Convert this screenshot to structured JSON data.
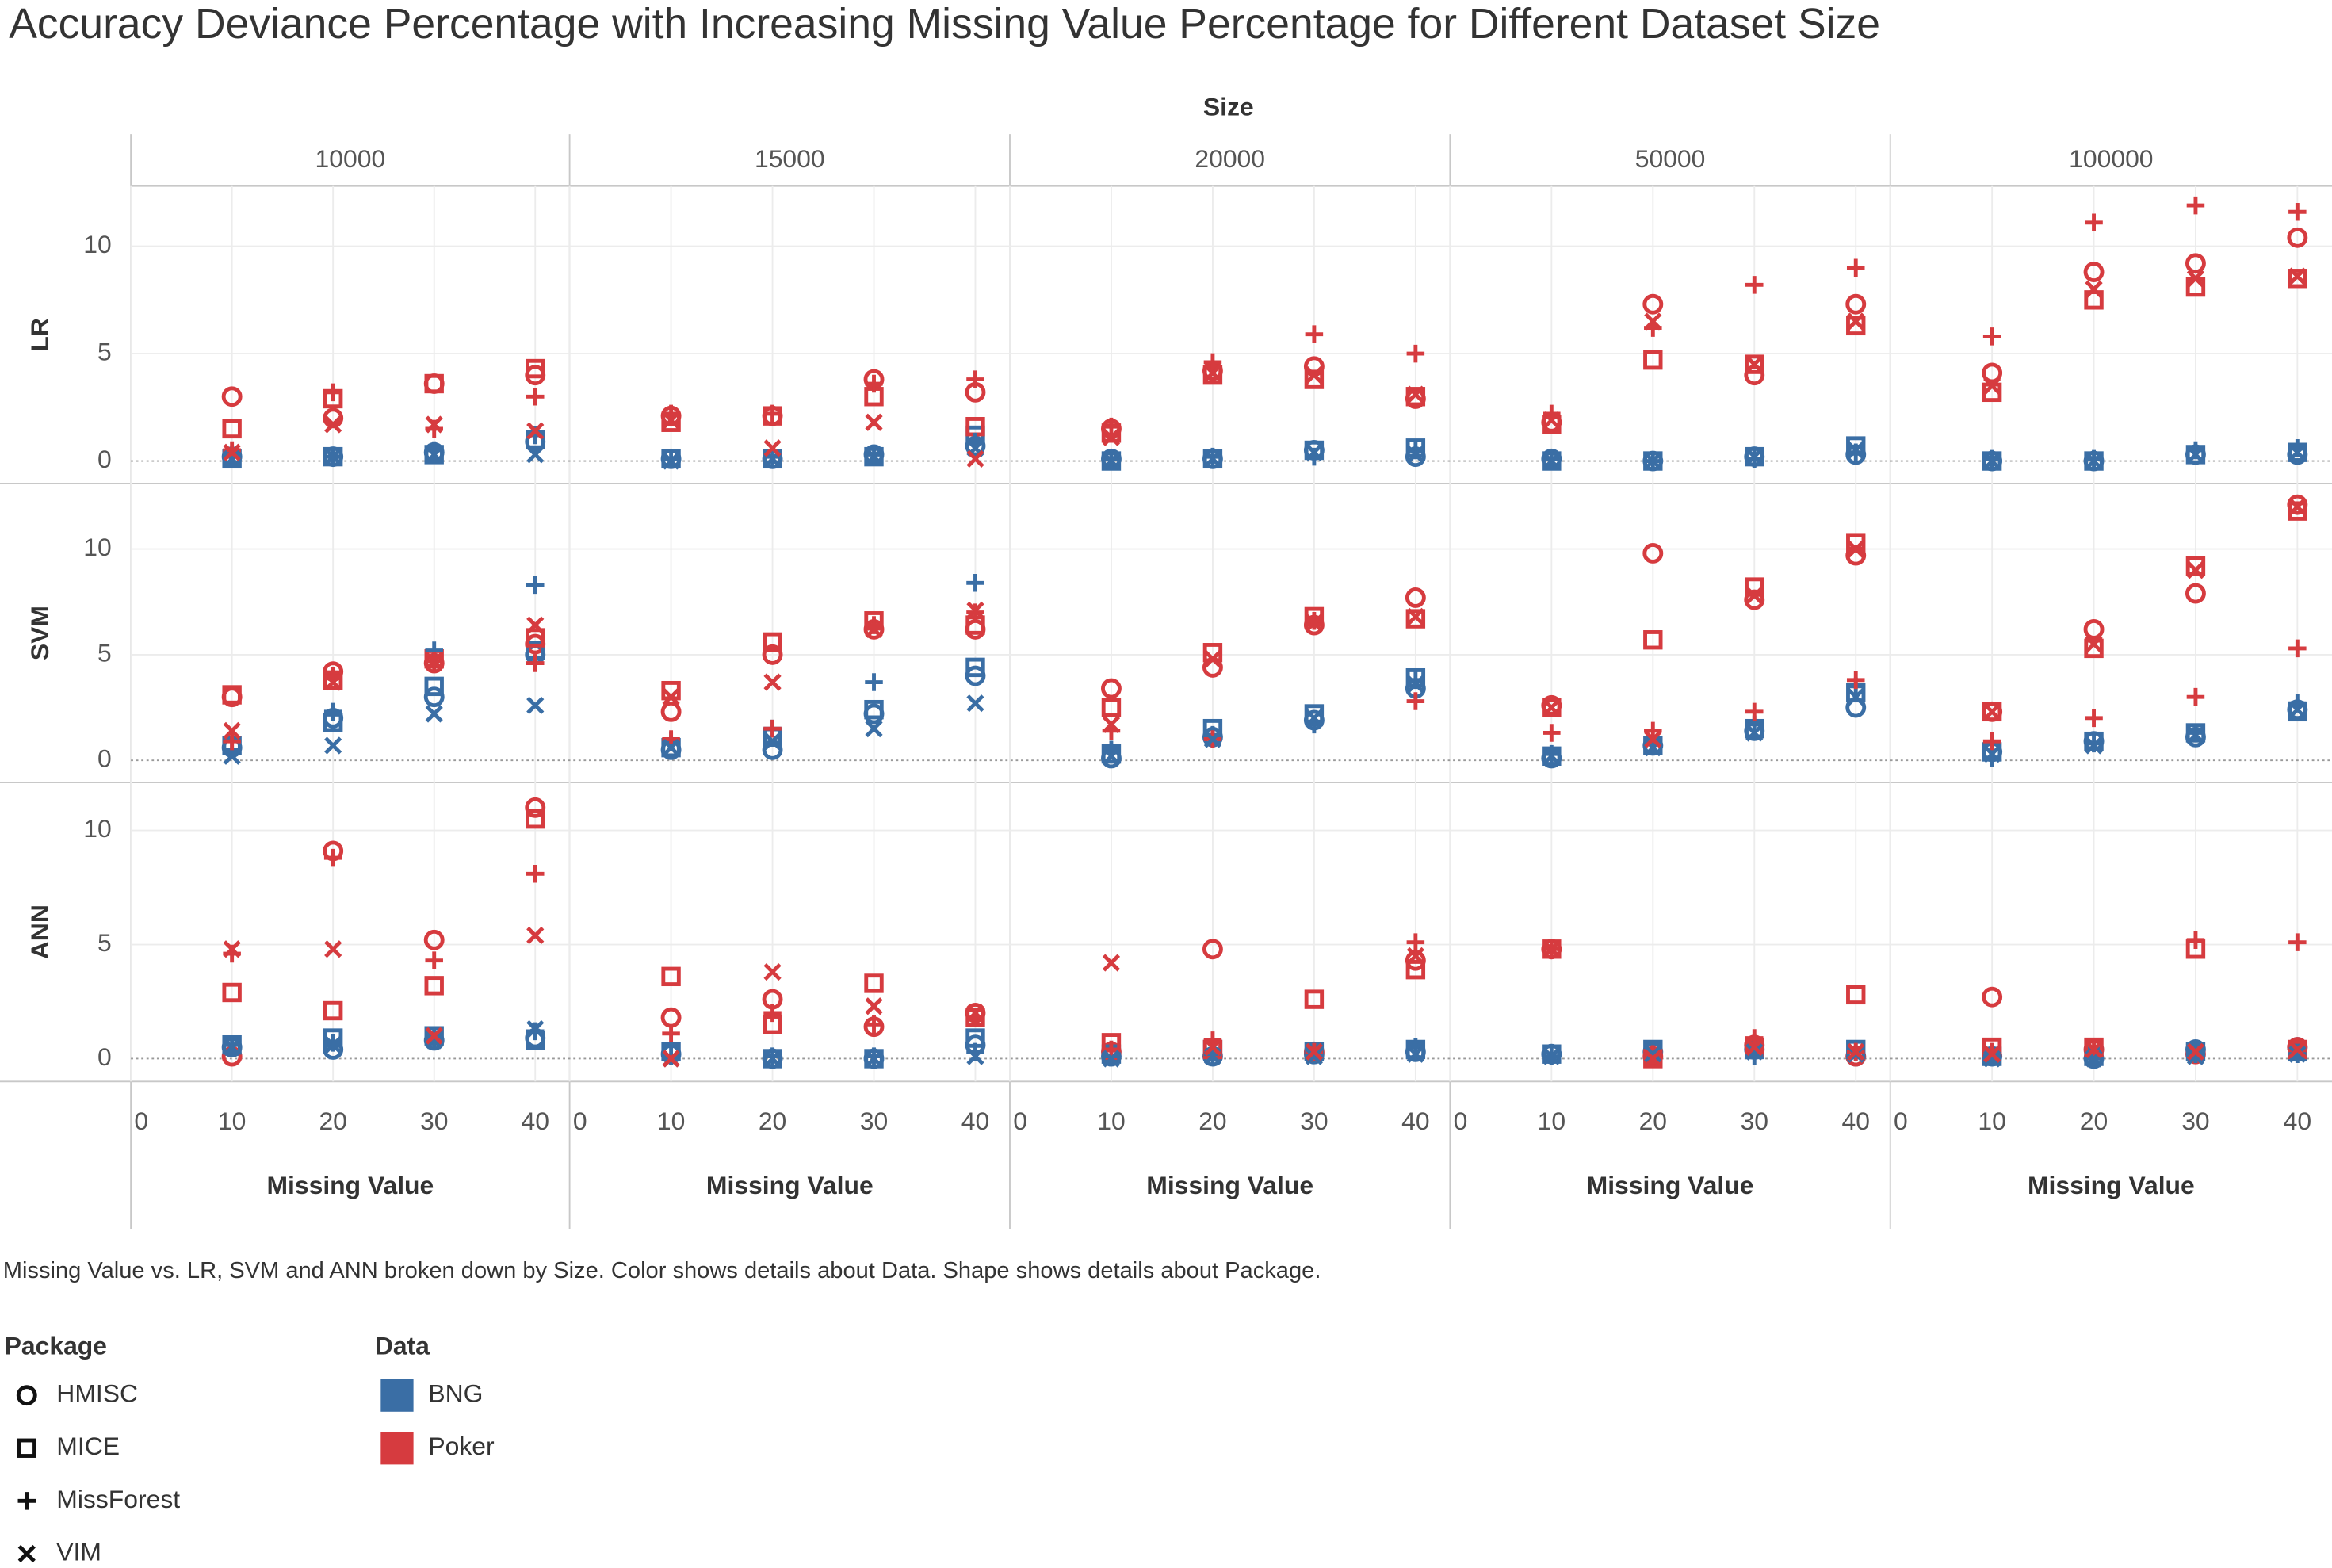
{
  "chart_data": {
    "type": "scatter",
    "title": "Accuracy Deviance Percentage with Increasing Missing Value Percentage for Different Dataset Size",
    "column_header": "Size",
    "columns": [
      "10000",
      "15000",
      "20000",
      "50000",
      "100000"
    ],
    "rows": [
      {
        "name": "LR",
        "ylim": [
          -1.05,
          12.8
        ],
        "yticks": [
          0,
          5,
          10
        ]
      },
      {
        "name": "SVM",
        "ylim": [
          -1.05,
          13.1
        ],
        "yticks": [
          0,
          5,
          10
        ]
      },
      {
        "name": "ANN",
        "ylim": [
          -1,
          12.1
        ],
        "yticks": [
          0,
          5,
          10
        ]
      }
    ],
    "x_label": "Missing Value",
    "x": [
      10,
      20,
      30,
      40
    ],
    "xlim": [
      0,
      43.4
    ],
    "xticks": [
      0,
      10,
      20,
      30,
      40
    ],
    "grid": true,
    "caption": "Missing Value vs. LR, SVM and ANN broken down by Size.  Color shows details about Data.  Shape shows details about Package.",
    "package_title": "Package",
    "packages": [
      {
        "name": "HMISC",
        "shape": "circle"
      },
      {
        "name": "MICE",
        "shape": "square"
      },
      {
        "name": "MissForest",
        "shape": "plus"
      },
      {
        "name": "VIM",
        "shape": "cross"
      }
    ],
    "data_title": "Data",
    "data": [
      {
        "name": "BNG",
        "color": "#3a6ea5"
      },
      {
        "name": "Poker",
        "color": "#d63b3f"
      }
    ],
    "values": [
      [
        [
          [
            [
              0.2,
              0.2,
              0.4,
              0.9
            ],
            [
              3.0,
              2.0,
              3.6,
              4.0
            ]
          ],
          [
            [
              0.1,
              0.2,
              0.3,
              1.0
            ],
            [
              1.5,
              2.9,
              3.6,
              4.3
            ]
          ],
          [
            [
              0.2,
              0.2,
              0.5,
              1.2
            ],
            [
              0.5,
              3.2,
              1.5,
              3.0
            ]
          ],
          [
            [
              0.1,
              0.2,
              0.3,
              0.3
            ],
            [
              0.4,
              1.7,
              1.7,
              1.4
            ]
          ]
        ],
        [
          [
            [
              0.1,
              0.1,
              0.3,
              0.7
            ],
            [
              2.1,
              2.1,
              3.8,
              3.2
            ]
          ],
          [
            [
              0.1,
              0.1,
              0.2,
              1.2
            ],
            [
              1.8,
              2.1,
              3.0,
              1.6
            ]
          ],
          [
            [
              0.1,
              0.2,
              0.3,
              0.9
            ],
            [
              2.2,
              2.2,
              3.6,
              3.8
            ]
          ],
          [
            [
              0,
              0.1,
              0.2,
              0.6
            ],
            [
              1.9,
              0.6,
              1.8,
              0.1
            ]
          ]
        ],
        [
          [
            [
              0.1,
              0.1,
              0.5,
              0.2
            ],
            [
              1.5,
              4.2,
              4.4,
              2.9
            ]
          ],
          [
            [
              0,
              0.1,
              0.5,
              0.6
            ],
            [
              1.3,
              4.0,
              3.8,
              3.0
            ]
          ],
          [
            [
              0.1,
              0.2,
              0.2,
              0.5
            ],
            [
              1.6,
              4.6,
              5.9,
              5.0
            ]
          ],
          [
            [
              0,
              0.1,
              0.4,
              0.3
            ],
            [
              1.1,
              4.1,
              4.0,
              3.1
            ]
          ]
        ],
        [
          [
            [
              0.1,
              0,
              0.2,
              0.3
            ],
            [
              1.8,
              7.3,
              4.0,
              7.3
            ]
          ],
          [
            [
              0,
              0,
              0.2,
              0.7
            ],
            [
              1.7,
              4.7,
              4.5,
              6.3
            ]
          ],
          [
            [
              0.1,
              0,
              0.1,
              0.4
            ],
            [
              2.2,
              6.2,
              8.2,
              9.0
            ]
          ],
          [
            [
              0,
              0,
              0.2,
              0.5
            ],
            [
              1.9,
              6.5,
              4.5,
              6.5
            ]
          ]
        ],
        [
          [
            [
              0,
              0,
              0.3,
              0.3
            ],
            [
              4.1,
              8.8,
              9.2,
              10.4
            ]
          ],
          [
            [
              0,
              0,
              0.3,
              0.4
            ],
            [
              3.2,
              7.5,
              8.1,
              8.5
            ]
          ],
          [
            [
              0.1,
              0.1,
              0.5,
              0.6
            ],
            [
              5.8,
              11.1,
              11.9,
              11.6
            ]
          ],
          [
            [
              0,
              0,
              0.3,
              0.4
            ],
            [
              3.5,
              8.0,
              8.5,
              8.6
            ]
          ]
        ]
      ],
      [
        [
          [
            [
              0.6,
              2.0,
              3.0,
              5.0
            ],
            [
              3.0,
              4.2,
              4.6,
              5.5
            ]
          ],
          [
            [
              0.7,
              1.8,
              3.5,
              5.2
            ],
            [
              3.1,
              3.8,
              4.8,
              5.8
            ]
          ],
          [
            [
              0.5,
              2.3,
              5.2,
              8.3
            ],
            [
              0.9,
              4.0,
              4.7,
              4.6
            ]
          ],
          [
            [
              0.2,
              0.7,
              2.2,
              2.6
            ],
            [
              1.4,
              3.7,
              4.7,
              6.4
            ]
          ]
        ],
        [
          [
            [
              0.5,
              0.5,
              2.2,
              4.0
            ],
            [
              2.3,
              5.0,
              6.2,
              6.2
            ]
          ],
          [
            [
              0.6,
              1.1,
              2.4,
              4.4
            ],
            [
              3.3,
              5.6,
              6.6,
              6.4
            ]
          ],
          [
            [
              0.9,
              1.5,
              3.7,
              8.4
            ],
            [
              1.0,
              1.5,
              6.4,
              7.0
            ]
          ],
          [
            [
              0.6,
              0.9,
              1.5,
              2.7
            ],
            [
              3.0,
              3.7,
              6.2,
              7.1
            ]
          ]
        ],
        [
          [
            [
              0.1,
              1.1,
              1.9,
              3.4
            ],
            [
              3.4,
              4.4,
              6.4,
              7.7
            ]
          ],
          [
            [
              0.3,
              1.5,
              2.2,
              3.9
            ],
            [
              2.5,
              5.1,
              6.8,
              6.7
            ]
          ],
          [
            [
              0.5,
              1.2,
              1.7,
              3.8
            ],
            [
              1.4,
              1.0,
              6.6,
              2.8
            ]
          ],
          [
            [
              0.2,
              1.0,
              2.0,
              3.6
            ],
            [
              1.7,
              4.8,
              6.5,
              6.8
            ]
          ]
        ],
        [
          [
            [
              0.1,
              0.7,
              1.4,
              2.5
            ],
            [
              2.6,
              9.8,
              7.6,
              9.7
            ]
          ],
          [
            [
              0.2,
              0.7,
              1.5,
              3.2
            ],
            [
              2.5,
              5.7,
              8.2,
              10.3
            ]
          ],
          [
            [
              0.3,
              0.8,
              1.7,
              3.5
            ],
            [
              1.3,
              1.4,
              2.3,
              3.8
            ]
          ],
          [
            [
              0.2,
              0.6,
              1.3,
              3.0
            ],
            [
              2.5,
              1.0,
              7.8,
              10.0
            ]
          ]
        ],
        [
          [
            [
              0.4,
              0.9,
              1.1,
              2.4
            ],
            [
              2.3,
              6.2,
              7.9,
              12.1
            ]
          ],
          [
            [
              0.4,
              0.9,
              1.3,
              2.3
            ],
            [
              2.3,
              5.3,
              9.2,
              11.8
            ]
          ],
          [
            [
              0.1,
              0.8,
              1.3,
              2.7
            ],
            [
              0.9,
              2.0,
              3.0,
              5.3
            ]
          ],
          [
            [
              0.3,
              0.7,
              1.2,
              2.4
            ],
            [
              2.3,
              5.5,
              9.0,
              12.0
            ]
          ]
        ]
      ],
      [
        [
          [
            [
              0.5,
              0.4,
              0.8,
              0.9
            ],
            [
              0.1,
              9.1,
              5.2,
              11.0
            ]
          ],
          [
            [
              0.6,
              0.9,
              1.0,
              0.8
            ],
            [
              2.9,
              2.1,
              3.2,
              10.5
            ]
          ],
          [
            [
              0.6,
              0.7,
              0.9,
              1.2
            ],
            [
              4.6,
              8.8,
              4.3,
              8.1
            ]
          ],
          [
            [
              0.5,
              0.6,
              0.8,
              1.3
            ],
            [
              4.8,
              4.8,
              1.0,
              5.4
            ]
          ]
        ],
        [
          [
            [
              0.2,
              0,
              0,
              0.6
            ],
            [
              1.8,
              2.6,
              1.4,
              2.0
            ]
          ],
          [
            [
              0.3,
              0,
              0,
              0.9
            ],
            [
              3.6,
              1.5,
              3.3,
              1.8
            ]
          ],
          [
            [
              0.1,
              0.1,
              0.1,
              0.3
            ],
            [
              1.1,
              2.0,
              1.5,
              1.8
            ]
          ],
          [
            [
              0,
              0,
              0,
              0.1
            ],
            [
              0,
              3.8,
              2.3,
              2.0
            ]
          ]
        ],
        [
          [
            [
              0.1,
              0.1,
              0.2,
              0.3
            ],
            [
              0.3,
              4.8,
              0.3,
              4.3
            ]
          ],
          [
            [
              0.2,
              0.4,
              0.3,
              0.4
            ],
            [
              0.7,
              0.4,
              2.6,
              3.9
            ]
          ],
          [
            [
              0.1,
              0.2,
              0.2,
              0.5
            ],
            [
              0.4,
              0.8,
              0.3,
              5.1
            ]
          ],
          [
            [
              0,
              0.1,
              0.1,
              0.2
            ],
            [
              4.2,
              0.5,
              0.3,
              4.5
            ]
          ]
        ],
        [
          [
            [
              0.2,
              0.3,
              0.4,
              0.1
            ],
            [
              4.8,
              0.1,
              0.6,
              0.1
            ]
          ],
          [
            [
              0.2,
              0.4,
              0.4,
              0.4
            ],
            [
              4.8,
              0,
              0.5,
              2.8
            ]
          ],
          [
            [
              0.1,
              0.2,
              0.1,
              0.3
            ],
            [
              4.8,
              0.2,
              0.9,
              0.3
            ]
          ],
          [
            [
              0.1,
              0.2,
              0.3,
              0.2
            ],
            [
              4.8,
              0,
              0.5,
              0.3
            ]
          ]
        ],
        [
          [
            [
              0.1,
              0,
              0.4,
              0.5
            ],
            [
              2.7,
              0.4,
              0.2,
              0.5
            ]
          ],
          [
            [
              0.1,
              0.1,
              0.3,
              0.3
            ],
            [
              0.5,
              0.5,
              4.8,
              0.4
            ]
          ],
          [
            [
              0.1,
              0,
              0.2,
              0.2
            ],
            [
              0.3,
              0.3,
              5.2,
              5.1
            ]
          ],
          [
            [
              0,
              0,
              0.1,
              0.2
            ],
            [
              0.2,
              0.4,
              0.3,
              0.4
            ]
          ]
        ]
      ]
    ]
  }
}
